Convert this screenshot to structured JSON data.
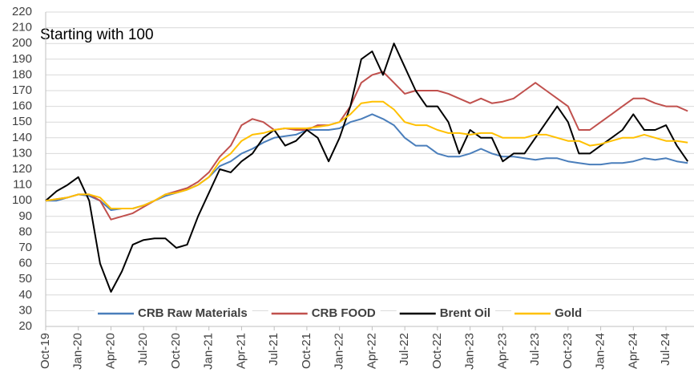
{
  "chart_data": {
    "type": "line",
    "annotation": "Starting with 100",
    "categories": [
      "Oct-19",
      null,
      null,
      "Jan-20",
      null,
      null,
      "Apr-20",
      null,
      null,
      "Jul-20",
      null,
      null,
      "Oct-20",
      null,
      null,
      "Jan-21",
      null,
      null,
      "Apr-21",
      null,
      null,
      "Jul-21",
      null,
      null,
      "Oct-21",
      null,
      null,
      "Jan-22",
      null,
      null,
      "Apr-22",
      null,
      null,
      "Jul-22",
      null,
      null,
      "Oct-22",
      null,
      null,
      "Jan-23",
      null,
      null,
      "Apr-23",
      null,
      null,
      "Jul-23",
      null,
      null,
      "Oct-23",
      null,
      null,
      "Jan-24",
      null,
      null,
      "Apr-24",
      null,
      null,
      "Jul-24",
      null,
      null
    ],
    "series": [
      {
        "name": "CRB Raw Materials",
        "color": "#4a7ebb",
        "values": [
          100,
          100,
          102,
          104,
          103,
          100,
          94,
          95,
          95,
          97,
          100,
          103,
          105,
          107,
          110,
          115,
          122,
          125,
          130,
          133,
          137,
          140,
          141,
          142,
          145,
          145,
          145,
          146,
          150,
          152,
          155,
          152,
          148,
          140,
          135,
          135,
          130,
          128,
          128,
          130,
          133,
          130,
          128,
          128,
          127,
          126,
          127,
          127,
          125,
          124,
          123,
          123,
          124,
          124,
          125,
          127,
          126,
          127,
          125,
          124
        ]
      },
      {
        "name": "CRB FOOD",
        "color": "#c0504d",
        "values": [
          100,
          101,
          102,
          104,
          104,
          100,
          88,
          90,
          92,
          96,
          100,
          104,
          106,
          108,
          112,
          118,
          128,
          135,
          148,
          152,
          150,
          145,
          146,
          145,
          145,
          148,
          148,
          150,
          160,
          175,
          180,
          182,
          175,
          168,
          170,
          170,
          170,
          168,
          165,
          162,
          165,
          162,
          163,
          165,
          170,
          175,
          170,
          165,
          160,
          145,
          145,
          150,
          155,
          160,
          165,
          165,
          162,
          160,
          160,
          157
        ]
      },
      {
        "name": "Brent Oil",
        "color": "#000000",
        "values": [
          100,
          106,
          110,
          115,
          100,
          60,
          42,
          55,
          72,
          75,
          76,
          76,
          70,
          72,
          90,
          105,
          120,
          118,
          125,
          130,
          140,
          145,
          135,
          138,
          145,
          140,
          125,
          140,
          160,
          190,
          195,
          180,
          200,
          185,
          170,
          160,
          160,
          150,
          130,
          145,
          140,
          140,
          125,
          130,
          130,
          140,
          150,
          160,
          150,
          130,
          130,
          135,
          140,
          145,
          155,
          145,
          145,
          148,
          135,
          125
        ]
      },
      {
        "name": "Gold",
        "color": "#ffc000",
        "values": [
          100,
          101,
          102,
          104,
          104,
          102,
          95,
          95,
          95,
          97,
          100,
          104,
          105,
          107,
          110,
          115,
          125,
          130,
          138,
          142,
          143,
          145,
          146,
          146,
          146,
          147,
          148,
          150,
          155,
          162,
          163,
          163,
          158,
          150,
          148,
          148,
          145,
          143,
          143,
          142,
          143,
          143,
          140,
          140,
          140,
          142,
          142,
          140,
          138,
          138,
          135,
          136,
          138,
          140,
          140,
          142,
          140,
          138,
          138,
          137
        ]
      }
    ],
    "ylim": [
      20,
      220
    ],
    "yticks": [
      20,
      30,
      40,
      50,
      60,
      70,
      80,
      90,
      100,
      110,
      120,
      130,
      140,
      150,
      160,
      170,
      180,
      190,
      200,
      210,
      220
    ],
    "grid": true,
    "legend": "bottom"
  }
}
